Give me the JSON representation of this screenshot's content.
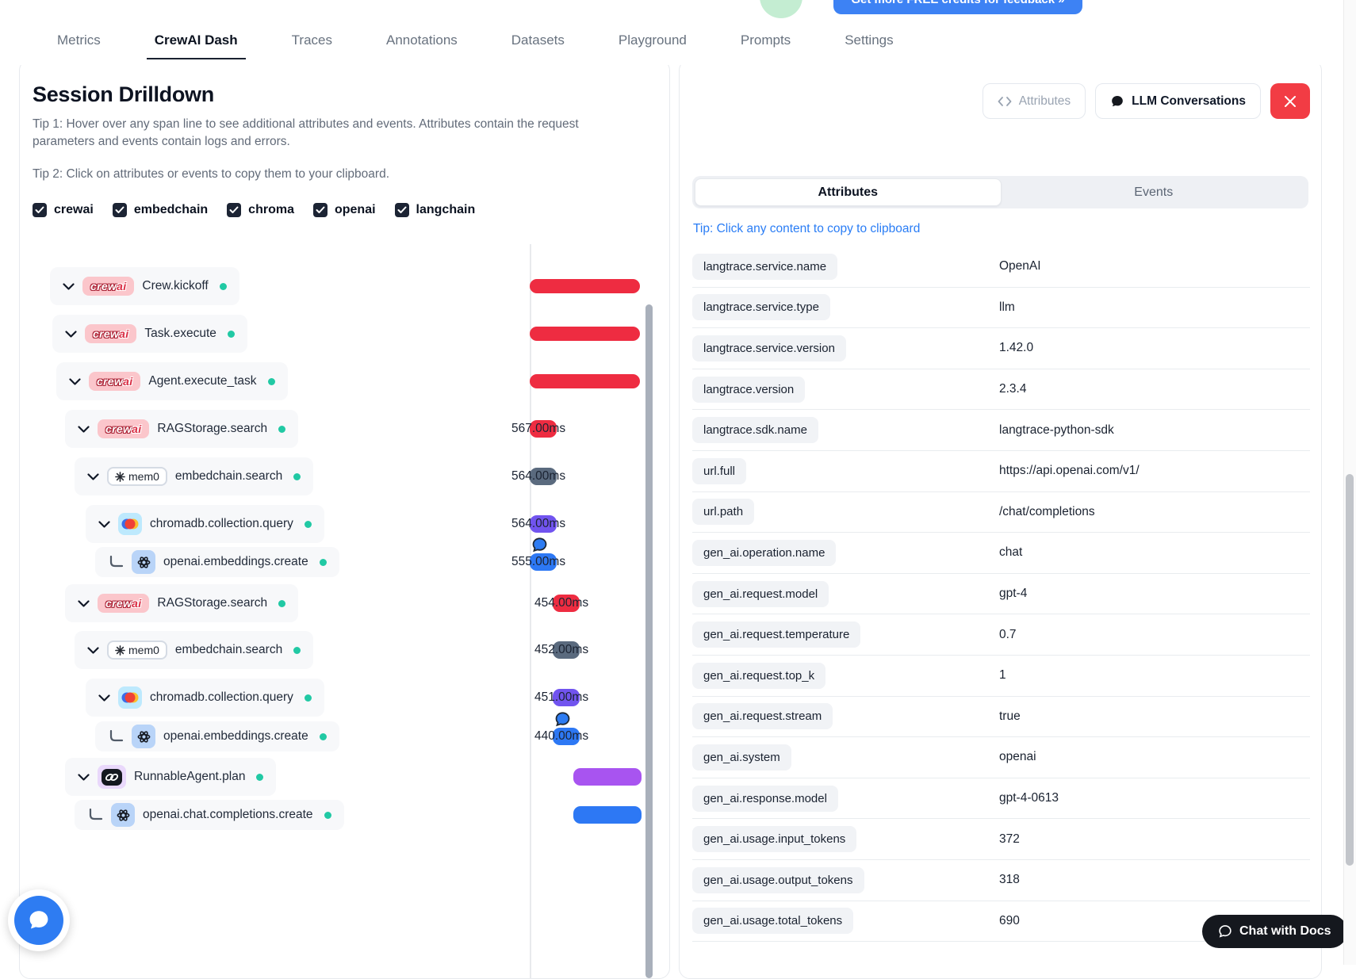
{
  "topnav": {
    "tabs": [
      {
        "label": "Metrics"
      },
      {
        "label": "CrewAI Dash"
      },
      {
        "label": "Traces"
      },
      {
        "label": "Annotations"
      },
      {
        "label": "Datasets"
      },
      {
        "label": "Playground"
      },
      {
        "label": "Prompts"
      },
      {
        "label": "Settings"
      }
    ],
    "active_tab": "CrewAI Dash",
    "credits_button_label": "Get more FREE credits for feedback »"
  },
  "session": {
    "title": "Session Drilldown",
    "tip1": "Tip 1: Hover over any span line to see additional attributes and events. Attributes contain the request parameters and events contain logs and errors.",
    "tip2": "Tip 2: Click on attributes or events to copy them to your clipboard.",
    "filters": [
      {
        "label": "crewai",
        "checked": true
      },
      {
        "label": "embedchain",
        "checked": true
      },
      {
        "label": "chroma",
        "checked": true
      },
      {
        "label": "openai",
        "checked": true
      },
      {
        "label": "langchain",
        "checked": true
      }
    ],
    "spans": [
      {
        "label": "Crew.kickoff",
        "vendor": "crewai",
        "level": 0,
        "expandable": true,
        "duration": "",
        "bar_color": "red",
        "has_conversation": false
      },
      {
        "label": "Task.execute",
        "vendor": "crewai",
        "level": 1,
        "expandable": true,
        "duration": "",
        "bar_color": "red",
        "has_conversation": false
      },
      {
        "label": "Agent.execute_task",
        "vendor": "crewai",
        "level": 2,
        "expandable": true,
        "duration": "",
        "bar_color": "red",
        "has_conversation": false
      },
      {
        "label": "RAGStorage.search",
        "vendor": "crewai",
        "level": 3,
        "expandable": true,
        "duration": "567.00ms",
        "bar_color": "red",
        "has_conversation": false
      },
      {
        "label": "embedchain.search",
        "vendor": "mem0",
        "level": 4,
        "expandable": true,
        "duration": "564.00ms",
        "bar_color": "slate",
        "has_conversation": false
      },
      {
        "label": "chromadb.collection.query",
        "vendor": "chroma",
        "level": 5,
        "expandable": true,
        "duration": "564.00ms",
        "bar_color": "purple",
        "has_conversation": false
      },
      {
        "label": "openai.embeddings.create",
        "vendor": "openai",
        "level": 6,
        "expandable": false,
        "duration": "555.00ms",
        "bar_color": "blue",
        "has_conversation": true
      },
      {
        "label": "RAGStorage.search",
        "vendor": "crewai",
        "level": 3,
        "expandable": true,
        "duration": "454.00ms",
        "bar_color": "red",
        "has_conversation": false
      },
      {
        "label": "embedchain.search",
        "vendor": "mem0",
        "level": 4,
        "expandable": true,
        "duration": "452.00ms",
        "bar_color": "slate",
        "has_conversation": false
      },
      {
        "label": "chromadb.collection.query",
        "vendor": "chroma",
        "level": 5,
        "expandable": true,
        "duration": "451.00ms",
        "bar_color": "purple",
        "has_conversation": false
      },
      {
        "label": "openai.embeddings.create",
        "vendor": "openai",
        "level": 6,
        "expandable": false,
        "duration": "440.00ms",
        "bar_color": "blue",
        "has_conversation": true
      },
      {
        "label": "RunnableAgent.plan",
        "vendor": "langchain",
        "level": 3,
        "expandable": true,
        "duration": "",
        "bar_color": "violet",
        "has_conversation": false
      },
      {
        "label": "openai.chat.completions.create",
        "vendor": "openai",
        "level": 4,
        "expandable": false,
        "duration": "",
        "bar_color": "blue",
        "has_conversation": false
      }
    ],
    "mem0_badge_label": "mem0"
  },
  "detail": {
    "attributes_button_label": "Attributes",
    "llm_conversations_button_label": "LLM Conversations",
    "tabs": {
      "attributes": "Attributes",
      "events": "Events"
    },
    "active_tab": "Attributes",
    "copy_tip": "Tip: Click any content to copy to clipboard",
    "rows": [
      {
        "key": "langtrace.service.name",
        "value": "OpenAI"
      },
      {
        "key": "langtrace.service.type",
        "value": "llm"
      },
      {
        "key": "langtrace.service.version",
        "value": "1.42.0"
      },
      {
        "key": "langtrace.version",
        "value": "2.3.4"
      },
      {
        "key": "langtrace.sdk.name",
        "value": "langtrace-python-sdk"
      },
      {
        "key": "url.full",
        "value": "https://api.openai.com/v1/"
      },
      {
        "key": "url.path",
        "value": "/chat/completions"
      },
      {
        "key": "gen_ai.operation.name",
        "value": "chat"
      },
      {
        "key": "gen_ai.request.model",
        "value": "gpt-4"
      },
      {
        "key": "gen_ai.request.temperature",
        "value": "0.7"
      },
      {
        "key": "gen_ai.request.top_k",
        "value": "1"
      },
      {
        "key": "gen_ai.request.stream",
        "value": "true"
      },
      {
        "key": "gen_ai.system",
        "value": "openai"
      },
      {
        "key": "gen_ai.response.model",
        "value": "gpt-4-0613"
      },
      {
        "key": "gen_ai.usage.input_tokens",
        "value": "372"
      },
      {
        "key": "gen_ai.usage.output_tokens",
        "value": "318"
      },
      {
        "key": "gen_ai.usage.total_tokens",
        "value": "690"
      }
    ]
  },
  "chat_widget": {
    "docs_button_label": "Chat with Docs"
  },
  "colors": {
    "red": "#ee2c41",
    "slate": "#5a6a7e",
    "purple": "#7154ef",
    "blue": "#2d78f4",
    "violet": "#a854f0",
    "teal_dot": "#21c9a4"
  }
}
